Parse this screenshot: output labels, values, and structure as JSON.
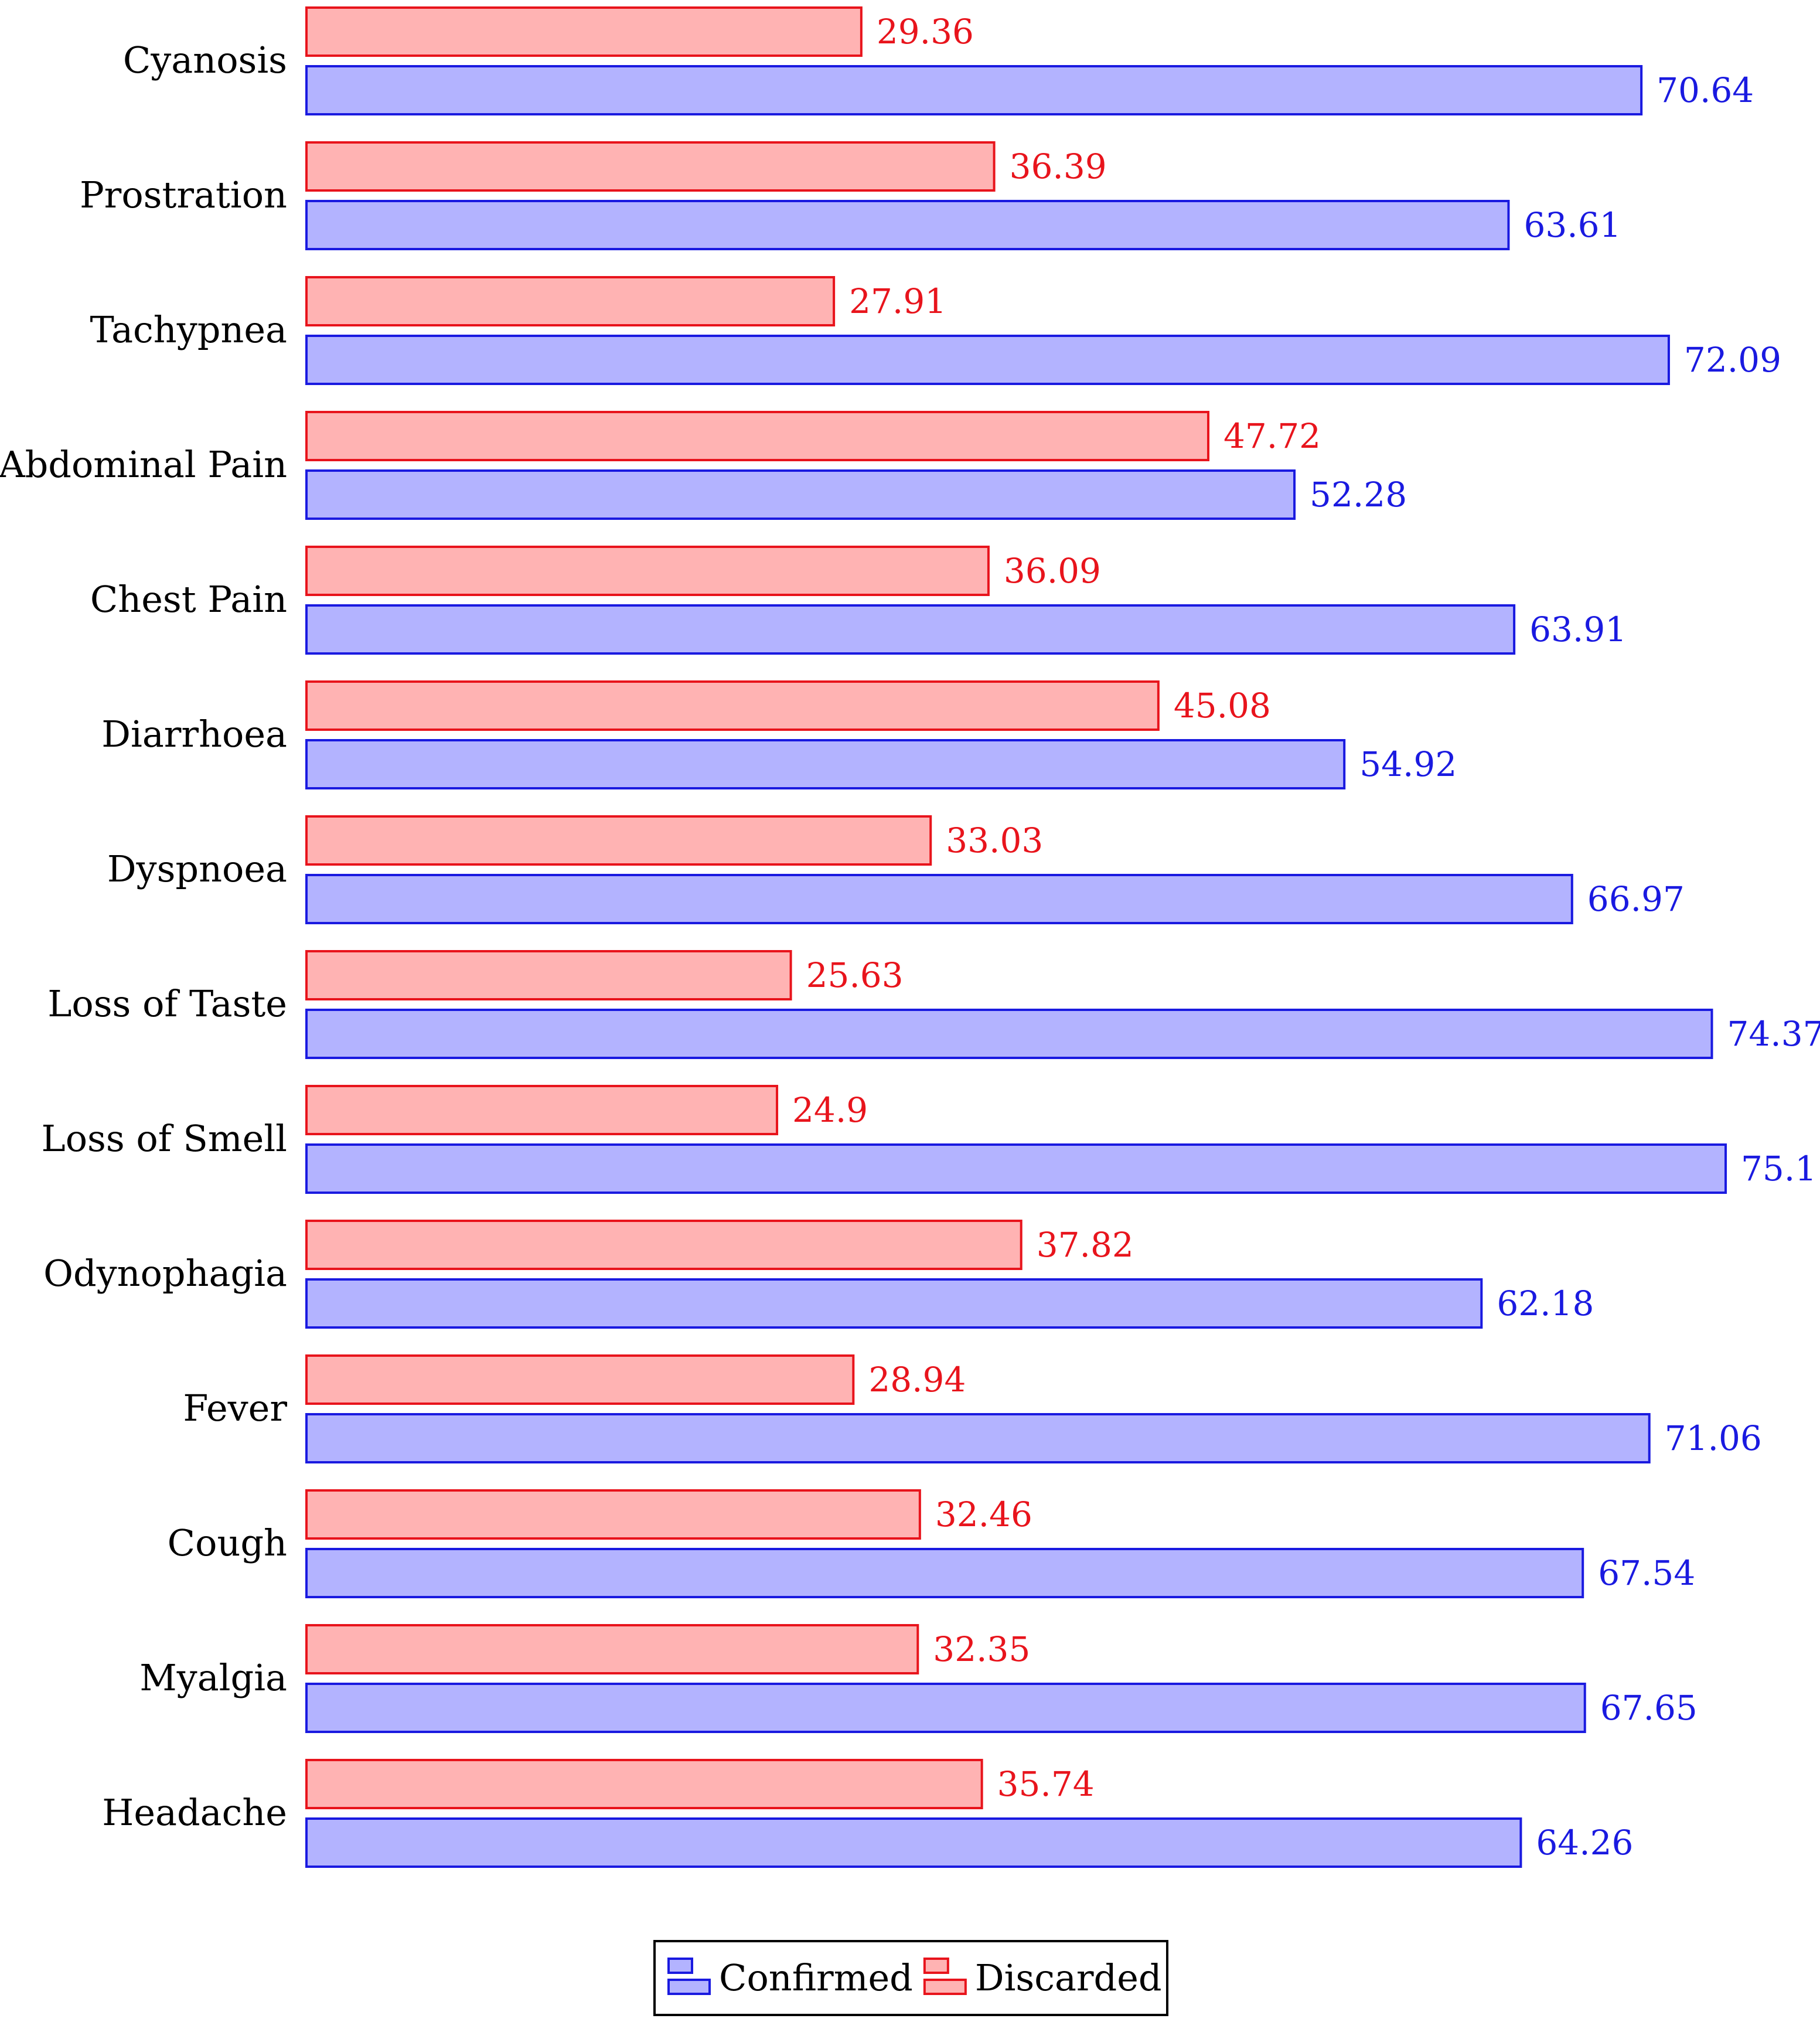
{
  "chart_data": {
    "type": "bar",
    "orientation": "horizontal",
    "title": "",
    "xlabel": "",
    "ylabel": "",
    "xlim": [
      0,
      75.1
    ],
    "grid": false,
    "legend_position": "bottom-center",
    "categories": [
      "Cyanosis",
      "Prostration",
      "Tachypnea",
      "Abdominal Pain",
      "Chest Pain",
      "Diarrhoea",
      "Dyspnoea",
      "Loss of Taste",
      "Loss of Smell",
      "Odynophagia",
      "Fever",
      "Cough",
      "Myalgia",
      "Headache"
    ],
    "series": [
      {
        "name": "Discarded",
        "fill": "#ffb3b3",
        "stroke": "#e8141c",
        "label_color": "#e8141c",
        "values": [
          29.36,
          36.39,
          27.91,
          47.72,
          36.09,
          45.08,
          33.03,
          25.63,
          24.9,
          37.82,
          28.94,
          32.46,
          32.35,
          35.74
        ],
        "value_labels": [
          "29.36",
          "36.39",
          "27.91",
          "47.72",
          "36.09",
          "45.08",
          "33.03",
          "25.63",
          "24.9",
          "37.82",
          "28.94",
          "32.46",
          "32.35",
          "35.74"
        ]
      },
      {
        "name": "Confirmed",
        "fill": "#b3b3ff",
        "stroke": "#1a1ae0",
        "label_color": "#1a1ae0",
        "values": [
          70.64,
          63.61,
          72.09,
          52.28,
          63.91,
          54.92,
          66.97,
          74.37,
          75.1,
          62.18,
          71.06,
          67.54,
          67.65,
          64.26
        ],
        "value_labels": [
          "70.64",
          "63.61",
          "72.09",
          "52.28",
          "63.91",
          "54.92",
          "66.97",
          "74.37",
          "75.1",
          "62.18",
          "71.06",
          "67.54",
          "67.65",
          "64.26"
        ]
      }
    ],
    "legend": [
      {
        "name": "Confirmed",
        "series_index": 1
      },
      {
        "name": "Discarded",
        "series_index": 0
      }
    ]
  }
}
